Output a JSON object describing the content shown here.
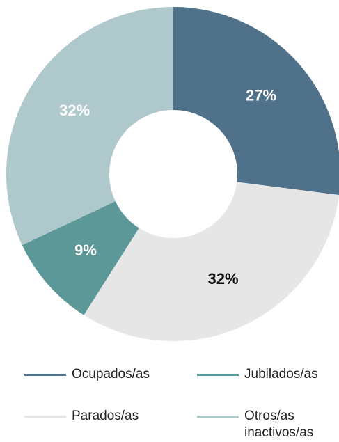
{
  "chart_data": {
    "type": "donut",
    "categories": [
      "Ocupados/as",
      "Parados/as",
      "Jubilados/as",
      "Otros/as inactivos/as"
    ],
    "values": [
      27,
      32,
      9,
      32
    ],
    "value_labels": [
      "27%",
      "32%",
      "9%",
      "32%"
    ],
    "colors": [
      "#4f7189",
      "#e6e6e6",
      "#5b9897",
      "#aec8cb"
    ]
  }
}
